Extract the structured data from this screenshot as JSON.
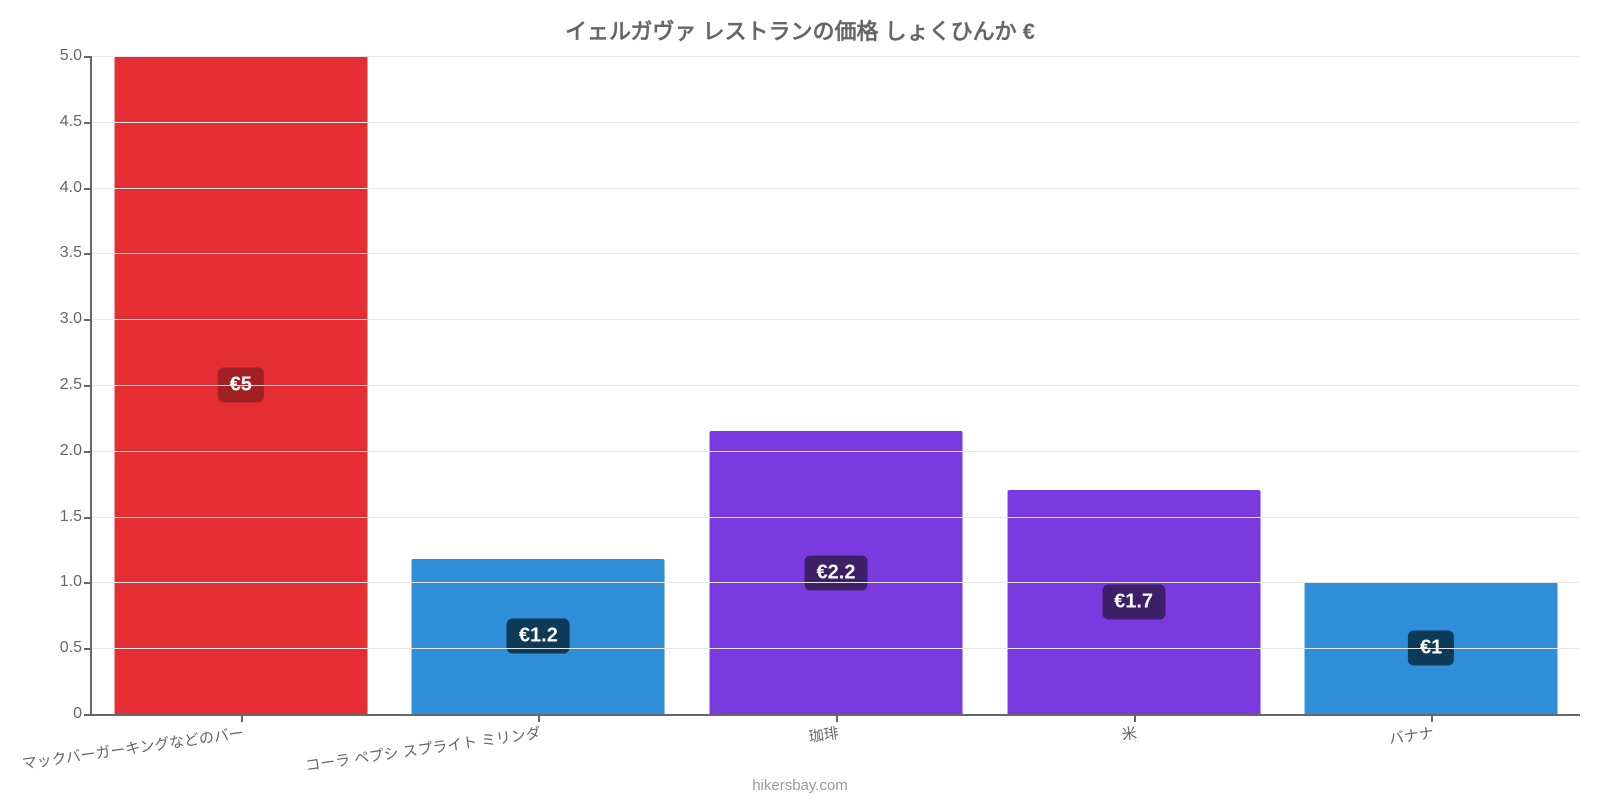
{
  "chart": {
    "type": "bar",
    "title": "イェルガヴァ レストランの価格 しょくひんか €",
    "title_color": "#666666",
    "title_fontsize": 22,
    "attribution": "hikersbay.com",
    "attribution_color": "#999999",
    "background_color": "#ffffff",
    "axis_color": "#666666",
    "grid_color": "#e6e6e6",
    "tick_label_color": "#666666",
    "tick_fontsize": 16,
    "xlabel_fontsize": 15,
    "value_badge_fontsize": 20,
    "ylim": [
      0,
      5.0
    ],
    "ytick_step": 0.5,
    "yticks": [
      0,
      0.5,
      1.0,
      1.5,
      2.0,
      2.5,
      3.0,
      3.5,
      4.0,
      4.5,
      5.0
    ],
    "ytick_labels": [
      "0",
      "0.5",
      "1.0",
      "1.5",
      "2.0",
      "2.5",
      "3.0",
      "3.5",
      "4.0",
      "4.5",
      "5.0"
    ],
    "bar_width_pct": 85,
    "bars": [
      {
        "category": "マックバーガーキングなどのバー",
        "value": 5.0,
        "value_label": "€5",
        "bar_color": "#e42e33",
        "badge_color": "#a12023"
      },
      {
        "category": "コーラ ペプシ スプライト ミリンダ",
        "value": 1.18,
        "value_label": "€1.2",
        "bar_color": "#2f8ed8",
        "badge_color": "#0d3a56"
      },
      {
        "category": "珈琲",
        "value": 2.15,
        "value_label": "€2.2",
        "bar_color": "#7b39e0",
        "badge_color": "#3d1f68"
      },
      {
        "category": "米",
        "value": 1.7,
        "value_label": "€1.7",
        "bar_color": "#7b39e0",
        "badge_color": "#3d1f68"
      },
      {
        "category": "バナナ",
        "value": 1.0,
        "value_label": "€1",
        "bar_color": "#2f8ed8",
        "badge_color": "#0d3a56"
      }
    ]
  }
}
